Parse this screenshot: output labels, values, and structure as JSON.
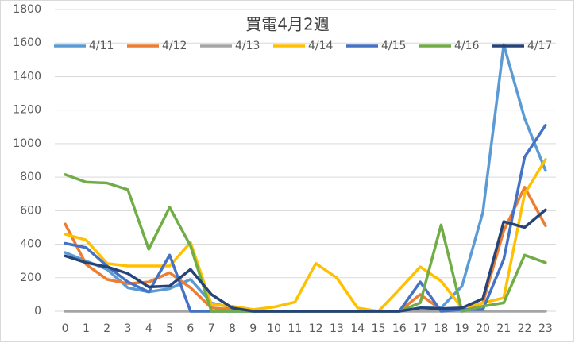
{
  "chart_data": {
    "type": "line",
    "title": "買電4月2週",
    "categories": [
      "0",
      "1",
      "2",
      "3",
      "4",
      "5",
      "6",
      "7",
      "8",
      "9",
      "10",
      "11",
      "12",
      "13",
      "14",
      "15",
      "16",
      "17",
      "18",
      "19",
      "20",
      "21",
      "22",
      "23"
    ],
    "series": [
      {
        "name": "4/11",
        "color": "#5b9bd5",
        "values": [
          350,
          300,
          250,
          140,
          115,
          135,
          190,
          50,
          20,
          0,
          0,
          0,
          0,
          0,
          0,
          0,
          0,
          20,
          20,
          150,
          590,
          1590,
          1150,
          840
        ]
      },
      {
        "name": "4/12",
        "color": "#ed7d31",
        "values": [
          520,
          280,
          190,
          165,
          175,
          230,
          140,
          20,
          10,
          0,
          0,
          0,
          0,
          0,
          0,
          0,
          0,
          100,
          10,
          10,
          50,
          480,
          740,
          510
        ]
      },
      {
        "name": "4/13",
        "color": "#a5a5a5",
        "values": [
          0,
          0,
          0,
          0,
          0,
          0,
          0,
          0,
          0,
          0,
          0,
          0,
          0,
          0,
          0,
          0,
          0,
          0,
          0,
          0,
          0,
          0,
          0,
          0
        ]
      },
      {
        "name": "4/14",
        "color": "#ffc000",
        "values": [
          460,
          425,
          285,
          270,
          270,
          270,
          410,
          40,
          30,
          10,
          25,
          55,
          285,
          200,
          20,
          0,
          130,
          265,
          180,
          20,
          50,
          80,
          700,
          905
        ]
      },
      {
        "name": "4/15",
        "color": "#4472c4",
        "values": [
          405,
          380,
          270,
          175,
          115,
          335,
          0,
          0,
          0,
          0,
          0,
          0,
          0,
          0,
          0,
          0,
          0,
          175,
          0,
          10,
          10,
          310,
          920,
          1110
        ]
      },
      {
        "name": "4/16",
        "color": "#70ad47",
        "values": [
          815,
          770,
          765,
          725,
          370,
          620,
          390,
          0,
          0,
          0,
          0,
          0,
          0,
          0,
          0,
          0,
          0,
          50,
          515,
          0,
          30,
          50,
          335,
          290
        ]
      },
      {
        "name": "4/17",
        "color": "#264478",
        "values": [
          330,
          290,
          265,
          225,
          145,
          150,
          250,
          100,
          20,
          0,
          0,
          0,
          0,
          0,
          0,
          0,
          0,
          20,
          15,
          20,
          75,
          535,
          500,
          605
        ]
      }
    ],
    "ylim": [
      0,
      1800
    ],
    "yticks": [
      0,
      200,
      400,
      600,
      800,
      1000,
      1200,
      1400,
      1600,
      1800
    ],
    "grid": true,
    "legend": "top"
  }
}
